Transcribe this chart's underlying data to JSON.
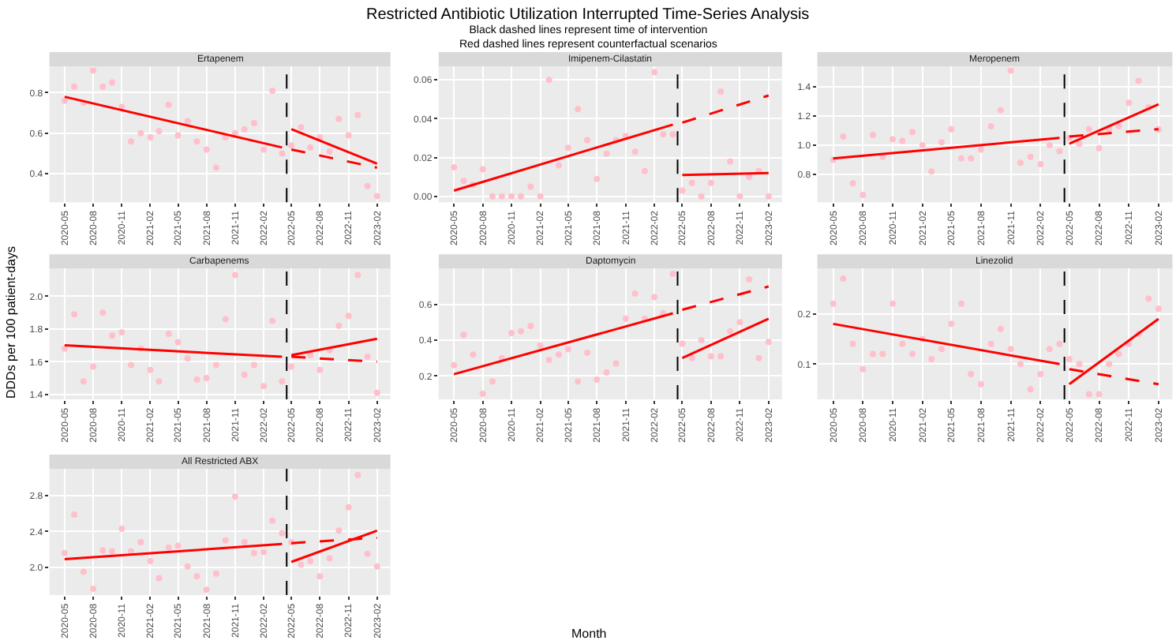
{
  "chart_data": [
    {
      "type": "other",
      "title": "Restricted Antibiotic Utilization Interrupted Time-Series Analysis",
      "subtitle": "Black dashed lines represent time of intervention\nRed dashed lines represent counterfactual scenarios",
      "xlabel": "Month",
      "ylabel": "DDDs per 100 patient-days"
    },
    {
      "type": "scatter",
      "title": "Ertapenem",
      "x": [
        "2020-05",
        "2020-06",
        "2020-07",
        "2020-08",
        "2020-09",
        "2020-10",
        "2020-11",
        "2020-12",
        "2021-01",
        "2021-02",
        "2021-03",
        "2021-04",
        "2021-05",
        "2021-06",
        "2021-07",
        "2021-08",
        "2021-09",
        "2021-10",
        "2021-11",
        "2021-12",
        "2022-01",
        "2022-02",
        "2022-03",
        "2022-04",
        "2022-05",
        "2022-06",
        "2022-07",
        "2022-08",
        "2022-09",
        "2022-10",
        "2022-11",
        "2022-12",
        "2023-01",
        "2023-02"
      ],
      "xlim": [
        "2020-03-13",
        "2023-03-16"
      ],
      "xticks": [
        "2020-05",
        "2020-08",
        "2020-11",
        "2021-02",
        "2021-05",
        "2021-08",
        "2021-11",
        "2022-02",
        "2022-05",
        "2022-08",
        "2022-11",
        "2023-02"
      ],
      "ylim": [
        0.26,
        0.93
      ],
      "yticks": [
        0.4,
        0.6,
        0.8
      ],
      "grid": true,
      "series": [
        {
          "type": "scatter",
          "marker": "circle",
          "color": "#ffc0cb",
          "values": [
            0.76,
            0.83,
            0.75,
            0.91,
            0.83,
            0.85,
            0.73,
            0.56,
            0.6,
            0.58,
            0.61,
            0.74,
            0.59,
            0.66,
            0.56,
            0.52,
            0.43,
            0.58,
            0.6,
            0.62,
            0.65,
            0.52,
            0.81,
            0.5,
            0.54,
            0.63,
            0.53,
            0.58,
            0.51,
            0.67,
            0.59,
            0.69,
            0.34,
            0.29
          ]
        },
        {
          "type": "line",
          "marker": "none",
          "line_style": "solid",
          "color": "#ff0000",
          "x": [
            "2020-05",
            "2022-04"
          ],
          "values": [
            0.78,
            0.53
          ]
        },
        {
          "type": "line",
          "marker": "none",
          "line_style": "solid",
          "color": "#ff0000",
          "x": [
            "2022-05",
            "2023-02"
          ],
          "values": [
            0.62,
            0.45
          ]
        },
        {
          "type": "line",
          "marker": "none",
          "line_style": "dashed",
          "color": "#ff0000",
          "x": [
            "2022-05",
            "2023-02"
          ],
          "values": [
            0.52,
            0.43
          ]
        }
      ],
      "ref_lines": [
        {
          "axis": "x",
          "value": "2022-04-16",
          "color": "#000000",
          "line_style": "dashed"
        }
      ]
    },
    {
      "type": "scatter",
      "title": "Imipenem-Cilastatin",
      "x": [
        "2020-05",
        "2020-06",
        "2020-07",
        "2020-08",
        "2020-09",
        "2020-10",
        "2020-11",
        "2020-12",
        "2021-01",
        "2021-02",
        "2021-03",
        "2021-04",
        "2021-05",
        "2021-06",
        "2021-07",
        "2021-08",
        "2021-09",
        "2021-10",
        "2021-11",
        "2021-12",
        "2022-01",
        "2022-02",
        "2022-03",
        "2022-04",
        "2022-05",
        "2022-06",
        "2022-07",
        "2022-08",
        "2022-09",
        "2022-10",
        "2022-11",
        "2022-12",
        "2023-01",
        "2023-02"
      ],
      "xlim": [
        "2020-03-13",
        "2023-03-16"
      ],
      "xticks": [
        "2020-05",
        "2020-08",
        "2020-11",
        "2021-02",
        "2021-05",
        "2021-08",
        "2021-11",
        "2022-02",
        "2022-05",
        "2022-08",
        "2022-11",
        "2023-02"
      ],
      "ylim": [
        -0.003,
        0.067
      ],
      "yticks": [
        {
          "value": 0,
          "label": "0.00"
        },
        {
          "value": 0.02,
          "label": "0.02"
        },
        {
          "value": 0.04,
          "label": "0.04"
        },
        {
          "value": 0.06,
          "label": "0.06"
        }
      ],
      "grid": true,
      "series": [
        {
          "type": "scatter",
          "marker": "circle",
          "color": "#ffc0cb",
          "values": [
            0.015,
            0.008,
            0.006,
            0.014,
            0,
            0,
            0,
            0,
            0.005,
            0,
            0.06,
            0.016,
            0.025,
            0.045,
            0.029,
            0.009,
            0.022,
            0.029,
            0.031,
            0.023,
            0.013,
            0.064,
            0.032,
            0.032,
            0.003,
            0.007,
            0,
            0.007,
            0.054,
            0.018,
            0,
            0.01,
            0.013,
            0
          ]
        },
        {
          "type": "line",
          "marker": "none",
          "line_style": "solid",
          "color": "#ff0000",
          "x": [
            "2020-05",
            "2022-04"
          ],
          "values": [
            0.003,
            0.037
          ]
        },
        {
          "type": "line",
          "marker": "none",
          "line_style": "solid",
          "color": "#ff0000",
          "x": [
            "2022-05",
            "2023-02"
          ],
          "values": [
            0.011,
            0.012
          ]
        },
        {
          "type": "line",
          "marker": "none",
          "line_style": "dashed",
          "color": "#ff0000",
          "x": [
            "2022-05",
            "2023-02"
          ],
          "values": [
            0.038,
            0.052
          ]
        }
      ],
      "ref_lines": [
        {
          "axis": "x",
          "value": "2022-04-16",
          "color": "#000000",
          "line_style": "dashed"
        }
      ]
    },
    {
      "type": "scatter",
      "title": "Meropenem",
      "x": [
        "2020-05",
        "2020-06",
        "2020-07",
        "2020-08",
        "2020-09",
        "2020-10",
        "2020-11",
        "2020-12",
        "2021-01",
        "2021-02",
        "2021-03",
        "2021-04",
        "2021-05",
        "2021-06",
        "2021-07",
        "2021-08",
        "2021-09",
        "2021-10",
        "2021-11",
        "2021-12",
        "2022-01",
        "2022-02",
        "2022-03",
        "2022-04",
        "2022-05",
        "2022-06",
        "2022-07",
        "2022-08",
        "2022-09",
        "2022-10",
        "2022-11",
        "2022-12",
        "2023-01",
        "2023-02"
      ],
      "xlim": [
        "2020-03-13",
        "2023-03-16"
      ],
      "xticks": [
        "2020-05",
        "2020-08",
        "2020-11",
        "2021-02",
        "2021-05",
        "2021-08",
        "2021-11",
        "2022-02",
        "2022-05",
        "2022-08",
        "2022-11",
        "2023-02"
      ],
      "ylim": [
        0.61,
        1.54
      ],
      "yticks": [
        0.8,
        {
          "value": 1.0,
          "label": "1.0"
        },
        1.2,
        1.4
      ],
      "grid": true,
      "series": [
        {
          "type": "scatter",
          "marker": "circle",
          "color": "#ffc0cb",
          "values": [
            0.9,
            1.06,
            0.74,
            0.66,
            1.07,
            0.92,
            1.04,
            1.03,
            1.09,
            1.0,
            0.82,
            1.02,
            1.11,
            0.91,
            0.91,
            0.97,
            1.13,
            1.24,
            1.51,
            0.88,
            0.92,
            0.87,
            1.0,
            0.96,
            1.05,
            1.01,
            1.11,
            0.98,
            1.11,
            1.13,
            1.29,
            1.44,
            1.26,
            1.11
          ]
        },
        {
          "type": "line",
          "marker": "none",
          "line_style": "solid",
          "color": "#ff0000",
          "x": [
            "2020-05",
            "2022-04"
          ],
          "values": [
            0.91,
            1.05
          ]
        },
        {
          "type": "line",
          "marker": "none",
          "line_style": "solid",
          "color": "#ff0000",
          "x": [
            "2022-05",
            "2023-02"
          ],
          "values": [
            1.01,
            1.28
          ]
        },
        {
          "type": "line",
          "marker": "none",
          "line_style": "dashed",
          "color": "#ff0000",
          "x": [
            "2022-05",
            "2023-02"
          ],
          "values": [
            1.06,
            1.11
          ]
        }
      ],
      "ref_lines": [
        {
          "axis": "x",
          "value": "2022-04-16",
          "color": "#000000",
          "line_style": "dashed"
        }
      ]
    },
    {
      "type": "scatter",
      "title": "Carbapenems",
      "x": [
        "2020-05",
        "2020-06",
        "2020-07",
        "2020-08",
        "2020-09",
        "2020-10",
        "2020-11",
        "2020-12",
        "2021-01",
        "2021-02",
        "2021-03",
        "2021-04",
        "2021-05",
        "2021-06",
        "2021-07",
        "2021-08",
        "2021-09",
        "2021-10",
        "2021-11",
        "2021-12",
        "2022-01",
        "2022-02",
        "2022-03",
        "2022-04",
        "2022-05",
        "2022-06",
        "2022-07",
        "2022-08",
        "2022-09",
        "2022-10",
        "2022-11",
        "2022-12",
        "2023-01",
        "2023-02"
      ],
      "xlim": [
        "2020-03-13",
        "2023-03-16"
      ],
      "xticks": [
        "2020-05",
        "2020-08",
        "2020-11",
        "2021-02",
        "2021-05",
        "2021-08",
        "2021-11",
        "2022-02",
        "2022-05",
        "2022-08",
        "2022-11",
        "2023-02"
      ],
      "ylim": [
        1.37,
        2.17
      ],
      "yticks": [
        1.4,
        1.6,
        1.8,
        {
          "value": 2.0,
          "label": "2.0"
        }
      ],
      "grid": true,
      "series": [
        {
          "type": "scatter",
          "marker": "circle",
          "color": "#ffc0cb",
          "values": [
            1.68,
            1.89,
            1.48,
            1.57,
            1.9,
            1.76,
            1.78,
            1.58,
            1.68,
            1.55,
            1.48,
            1.77,
            1.72,
            1.62,
            1.49,
            1.5,
            1.58,
            1.86,
            2.13,
            1.52,
            1.58,
            1.45,
            1.85,
            1.48,
            1.57,
            null,
            1.64,
            1.55,
            1.67,
            1.82,
            1.88,
            2.13,
            1.63,
            1.41
          ]
        },
        {
          "type": "line",
          "marker": "none",
          "line_style": "solid",
          "color": "#ff0000",
          "x": [
            "2020-05",
            "2022-04"
          ],
          "values": [
            1.7,
            1.63
          ]
        },
        {
          "type": "line",
          "marker": "none",
          "line_style": "solid",
          "color": "#ff0000",
          "x": [
            "2022-05",
            "2023-02"
          ],
          "values": [
            1.64,
            1.74
          ]
        },
        {
          "type": "line",
          "marker": "none",
          "line_style": "dashed",
          "color": "#ff0000",
          "x": [
            "2022-05",
            "2023-02"
          ],
          "values": [
            1.63,
            1.6
          ]
        }
      ],
      "ref_lines": [
        {
          "axis": "x",
          "value": "2022-04-16",
          "color": "#000000",
          "line_style": "dashed"
        }
      ]
    },
    {
      "type": "scatter",
      "title": "Daptomycin",
      "x": [
        "2020-05",
        "2020-06",
        "2020-07",
        "2020-08",
        "2020-09",
        "2020-10",
        "2020-11",
        "2020-12",
        "2021-01",
        "2021-02",
        "2021-03",
        "2021-04",
        "2021-05",
        "2021-06",
        "2021-07",
        "2021-08",
        "2021-09",
        "2021-10",
        "2021-11",
        "2021-12",
        "2022-01",
        "2022-02",
        "2022-03",
        "2022-04",
        "2022-05",
        "2022-06",
        "2022-07",
        "2022-08",
        "2022-09",
        "2022-10",
        "2022-11",
        "2022-12",
        "2023-01",
        "2023-02"
      ],
      "xlim": [
        "2020-03-13",
        "2023-03-16"
      ],
      "xticks": [
        "2020-05",
        "2020-08",
        "2020-11",
        "2021-02",
        "2021-05",
        "2021-08",
        "2021-11",
        "2022-02",
        "2022-05",
        "2022-08",
        "2022-11",
        "2023-02"
      ],
      "ylim": [
        0.07,
        0.8
      ],
      "yticks": [
        0.2,
        0.4,
        0.6
      ],
      "grid": true,
      "series": [
        {
          "type": "scatter",
          "marker": "circle",
          "color": "#ffc0cb",
          "values": [
            0.26,
            0.43,
            0.32,
            0.1,
            0.17,
            0.3,
            0.44,
            0.45,
            0.48,
            0.37,
            0.29,
            0.32,
            0.35,
            0.17,
            0.33,
            0.18,
            0.22,
            0.27,
            0.52,
            0.66,
            0.52,
            0.64,
            0.55,
            0.77,
            0.38,
            0.3,
            0.4,
            0.31,
            0.31,
            0.45,
            0.5,
            0.74,
            0.3,
            0.39
          ]
        },
        {
          "type": "line",
          "marker": "none",
          "line_style": "solid",
          "color": "#ff0000",
          "x": [
            "2020-05",
            "2022-04"
          ],
          "values": [
            0.21,
            0.55
          ]
        },
        {
          "type": "line",
          "marker": "none",
          "line_style": "solid",
          "color": "#ff0000",
          "x": [
            "2022-05",
            "2023-02"
          ],
          "values": [
            0.3,
            0.52
          ]
        },
        {
          "type": "line",
          "marker": "none",
          "line_style": "dashed",
          "color": "#ff0000",
          "x": [
            "2022-05",
            "2023-02"
          ],
          "values": [
            0.57,
            0.7
          ]
        }
      ],
      "ref_lines": [
        {
          "axis": "x",
          "value": "2022-04-16",
          "color": "#000000",
          "line_style": "dashed"
        }
      ]
    },
    {
      "type": "scatter",
      "title": "Linezolid",
      "x": [
        "2020-05",
        "2020-06",
        "2020-07",
        "2020-08",
        "2020-09",
        "2020-10",
        "2020-11",
        "2020-12",
        "2021-01",
        "2021-02",
        "2021-03",
        "2021-04",
        "2021-05",
        "2021-06",
        "2021-07",
        "2021-08",
        "2021-09",
        "2021-10",
        "2021-11",
        "2021-12",
        "2022-01",
        "2022-02",
        "2022-03",
        "2022-04",
        "2022-05",
        "2022-06",
        "2022-07",
        "2022-08",
        "2022-09",
        "2022-10",
        "2022-11",
        "2022-12",
        "2023-01",
        "2023-02"
      ],
      "xlim": [
        "2020-03-13",
        "2023-03-16"
      ],
      "xticks": [
        "2020-05",
        "2020-08",
        "2020-11",
        "2021-02",
        "2021-05",
        "2021-08",
        "2021-11",
        "2022-02",
        "2022-05",
        "2022-08",
        "2022-11",
        "2023-02"
      ],
      "ylim": [
        0.03,
        0.29
      ],
      "yticks": [
        0.1,
        0.2
      ],
      "grid": true,
      "series": [
        {
          "type": "scatter",
          "marker": "circle",
          "color": "#ffc0cb",
          "values": [
            0.22,
            0.27,
            0.14,
            0.09,
            0.12,
            0.12,
            0.22,
            0.14,
            0.12,
            0.15,
            0.11,
            0.13,
            0.18,
            0.22,
            0.08,
            0.06,
            0.14,
            0.17,
            0.13,
            0.1,
            0.05,
            0.08,
            0.13,
            0.14,
            0.11,
            0.1,
            0.04,
            0.04,
            0.1,
            0.12,
            0.14,
            0.16,
            0.23,
            0.21
          ]
        },
        {
          "type": "line",
          "marker": "none",
          "line_style": "solid",
          "color": "#ff0000",
          "x": [
            "2020-05",
            "2022-04"
          ],
          "values": [
            0.18,
            0.1
          ]
        },
        {
          "type": "line",
          "marker": "none",
          "line_style": "solid",
          "color": "#ff0000",
          "x": [
            "2022-05",
            "2023-02"
          ],
          "values": [
            0.06,
            0.19
          ]
        },
        {
          "type": "line",
          "marker": "none",
          "line_style": "dashed",
          "color": "#ff0000",
          "x": [
            "2022-05",
            "2023-02"
          ],
          "values": [
            0.09,
            0.06
          ]
        }
      ],
      "ref_lines": [
        {
          "axis": "x",
          "value": "2022-04-16",
          "color": "#000000",
          "line_style": "dashed"
        }
      ]
    },
    {
      "type": "scatter",
      "title": "All Restricted ABX",
      "x": [
        "2020-05",
        "2020-06",
        "2020-07",
        "2020-08",
        "2020-09",
        "2020-10",
        "2020-11",
        "2020-12",
        "2021-01",
        "2021-02",
        "2021-03",
        "2021-04",
        "2021-05",
        "2021-06",
        "2021-07",
        "2021-08",
        "2021-09",
        "2021-10",
        "2021-11",
        "2021-12",
        "2022-01",
        "2022-02",
        "2022-03",
        "2022-04",
        "2022-05",
        "2022-06",
        "2022-07",
        "2022-08",
        "2022-09",
        "2022-10",
        "2022-11",
        "2022-12",
        "2023-01",
        "2023-02"
      ],
      "xlim": [
        "2020-03-13",
        "2023-03-16"
      ],
      "xticks": [
        "2020-05",
        "2020-08",
        "2020-11",
        "2021-02",
        "2021-05",
        "2021-08",
        "2021-11",
        "2022-02",
        "2022-05",
        "2022-08",
        "2022-11",
        "2023-02"
      ],
      "ylim": [
        1.69,
        3.1
      ],
      "yticks": [
        {
          "value": 2.0,
          "label": "2.0"
        },
        2.4,
        2.8
      ],
      "grid": true,
      "series": [
        {
          "type": "scatter",
          "marker": "circle",
          "color": "#ffc0cb",
          "values": [
            2.16,
            2.59,
            1.95,
            1.76,
            2.19,
            2.18,
            2.43,
            2.18,
            2.28,
            2.07,
            1.88,
            2.22,
            2.24,
            2.01,
            1.9,
            1.75,
            1.93,
            2.3,
            2.79,
            2.28,
            2.16,
            2.17,
            2.52,
            2.38,
            2.28,
            2.03,
            2.07,
            1.9,
            2.1,
            2.41,
            2.67,
            3.03,
            2.15,
            2.01
          ]
        },
        {
          "type": "line",
          "marker": "none",
          "line_style": "solid",
          "color": "#ff0000",
          "x": [
            "2020-05",
            "2022-04"
          ],
          "values": [
            2.09,
            2.26
          ]
        },
        {
          "type": "line",
          "marker": "none",
          "line_style": "solid",
          "color": "#ff0000",
          "x": [
            "2022-05",
            "2023-02"
          ],
          "values": [
            2.06,
            2.41
          ]
        },
        {
          "type": "line",
          "marker": "none",
          "line_style": "dashed",
          "color": "#ff0000",
          "x": [
            "2022-05",
            "2023-02"
          ],
          "values": [
            2.27,
            2.33
          ]
        }
      ],
      "ref_lines": [
        {
          "axis": "x",
          "value": "2022-04-16",
          "color": "#000000",
          "line_style": "dashed"
        }
      ]
    }
  ]
}
